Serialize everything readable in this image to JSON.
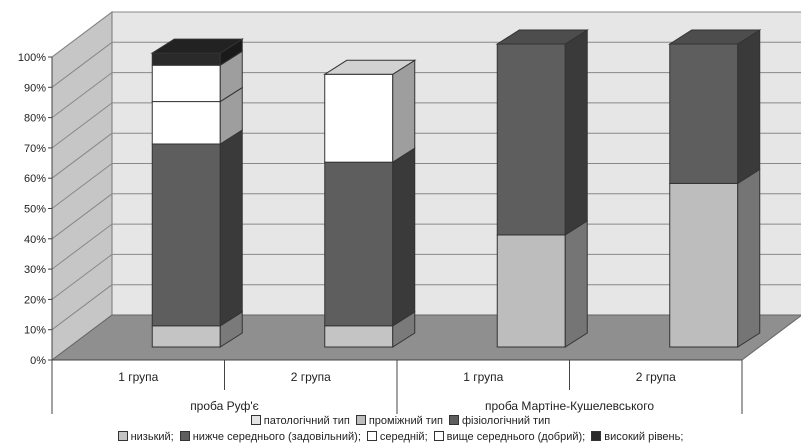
{
  "chart_data": {
    "type": "bar",
    "stacked": true,
    "three_d": true,
    "y_ticks": [
      "0%",
      "10%",
      "20%",
      "30%",
      "40%",
      "50%",
      "60%",
      "70%",
      "80%",
      "90%",
      "100%"
    ],
    "ylim": [
      0,
      100
    ],
    "grid": true,
    "categories": [
      "1 група",
      "2 група",
      "1 група",
      "2 група"
    ],
    "groups": [
      {
        "label": "проба Руф'є",
        "span": [
          0,
          1
        ]
      },
      {
        "label": "проба Мартіне-Кушелевського",
        "span": [
          2,
          3
        ]
      }
    ],
    "series": [
      {
        "name": "низький;",
        "color": "#c4c4c4",
        "values": [
          7,
          7,
          null,
          null
        ]
      },
      {
        "name": "нижче середнього (задовільний);",
        "color": "#5e5e5e",
        "values": [
          60,
          54,
          null,
          null
        ]
      },
      {
        "name": "середній;",
        "color": "#ffffff",
        "values": [
          14,
          0,
          null,
          null
        ]
      },
      {
        "name": "вище середнього (добрий);",
        "color": "#ffffff",
        "values": [
          12,
          29,
          null,
          null
        ]
      },
      {
        "name": "високий рівень;",
        "color": "#2a2a2a",
        "values": [
          4,
          0,
          null,
          null
        ]
      },
      {
        "name": "патологічний тип",
        "color": "#e4e4e4",
        "values": [
          null,
          null,
          0,
          0
        ]
      },
      {
        "name": "проміжний тип",
        "color": "#bdbdbd",
        "values": [
          null,
          null,
          37,
          54
        ]
      },
      {
        "name": "фізіологічний тип",
        "color": "#5e5e5e",
        "values": [
          null,
          null,
          63,
          46
        ]
      }
    ],
    "legend_rows": [
      [
        5,
        6,
        7
      ],
      [
        0,
        1,
        2,
        3,
        4
      ]
    ],
    "legend_position": "bottom"
  }
}
